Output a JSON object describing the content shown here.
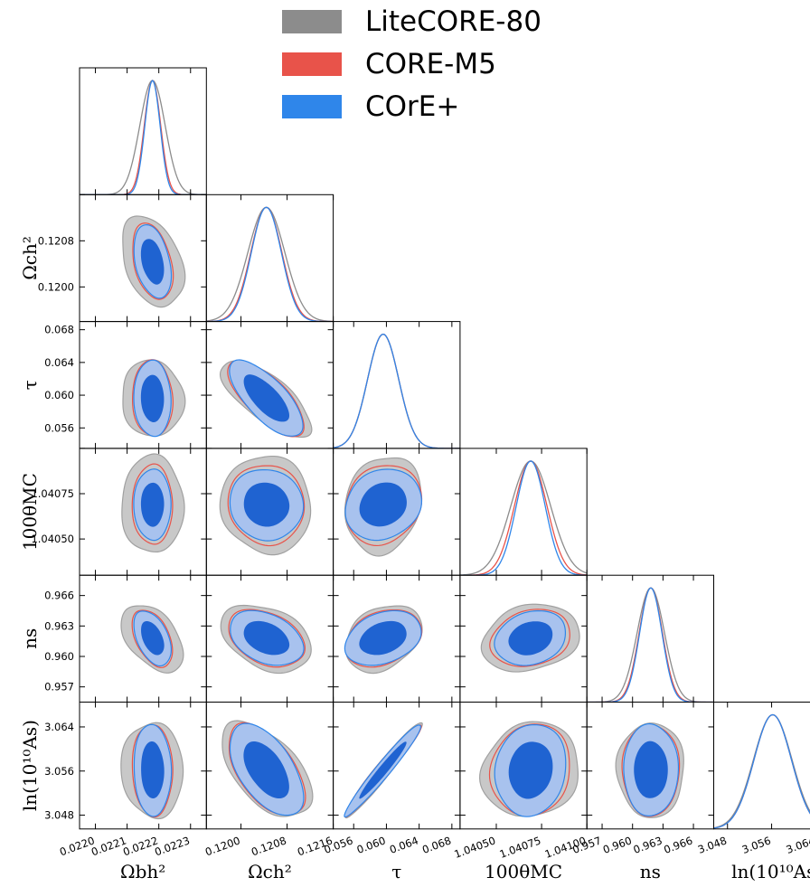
{
  "colors": {
    "litecore": "#8c8c8c",
    "coremn": "#e8534a",
    "core_plus": "#2f86ea",
    "core_plus_inner": "#1f63d1",
    "core_plus_outer": "#a8c2ee",
    "gray_fill": "#c8c8c8"
  },
  "legend": {
    "items": [
      {
        "label": "LiteCORE-80",
        "color": "#8c8c8c"
      },
      {
        "label": "CORE-M5",
        "color": "#e8534a"
      },
      {
        "label": "COrE+",
        "color": "#2f86ea"
      }
    ]
  },
  "chart_data": {
    "type": "triangle-corner",
    "parameters": [
      {
        "label": "Ωbh²",
        "center": 0.02218,
        "sd": [
          4e-05,
          2.6e-05,
          2.4e-05
        ],
        "range": [
          0.02195,
          0.02235
        ],
        "ticks": [
          0.022,
          0.0221,
          0.0222,
          0.0223
        ],
        "tick_labels": [
          "0.0220",
          "0.0221",
          "0.0222",
          "0.0223"
        ]
      },
      {
        "label": "Ωch²",
        "center": 0.12044,
        "sd": [
          0.00032,
          0.00027,
          0.00026
        ],
        "range": [
          0.1194,
          0.1216
        ],
        "ticks": [
          0.12,
          0.1208,
          0.1216
        ],
        "tick_labels": [
          "0.1200",
          "0.1208",
          "0.1216"
        ]
      },
      {
        "label": "τ",
        "center": 0.0596,
        "sd": [
          0.0019,
          0.0019,
          0.0019
        ],
        "range": [
          0.0535,
          0.069
        ],
        "ticks": [
          0.056,
          0.06,
          0.064,
          0.068
        ],
        "tick_labels": [
          "0.056",
          "0.060",
          "0.064",
          "0.068"
        ]
      },
      {
        "label": "100θMC",
        "center": 1.04069,
        "sd": [
          0.00011,
          9e-05,
          8e-05
        ],
        "range": [
          1.0403,
          1.041
        ],
        "ticks": [
          1.0405,
          1.04075,
          1.041
        ],
        "tick_labels": [
          "1.04050",
          "1.04075",
          "1.04100"
        ]
      },
      {
        "label": "ns",
        "center": 0.9618,
        "sd": [
          0.00135,
          0.00115,
          0.0011
        ],
        "range": [
          0.9555,
          0.968
        ],
        "ticks": [
          0.957,
          0.96,
          0.963,
          0.966
        ],
        "tick_labels": [
          "0.957",
          "0.960",
          "0.963",
          "0.966"
        ]
      },
      {
        "label": "ln(10¹⁰As)",
        "center": 3.0562,
        "sd": [
          0.0035,
          0.0034,
          0.0034
        ],
        "range": [
          3.0455,
          3.0685
        ],
        "ticks": [
          3.048,
          3.056,
          3.064
        ],
        "tick_labels": [
          "3.048",
          "3.056",
          "3.064"
        ]
      }
    ],
    "series": [
      {
        "name": "LiteCORE-80"
      },
      {
        "name": "CORE-M5"
      },
      {
        "name": "COrE+"
      }
    ],
    "correlations": {
      "1-0": -0.35,
      "2-0": -0.05,
      "2-1": -0.72,
      "3-0": 0.0,
      "3-1": -0.05,
      "3-2": 0.15,
      "4-0": -0.45,
      "4-1": -0.35,
      "4-2": 0.3,
      "4-3": 0.2,
      "5-0": -0.05,
      "5-1": -0.55,
      "5-2": 0.97,
      "5-3": 0.1,
      "5-4": 0.0
    },
    "contours": "68% and 95% credible regions; 1D marginal posteriors on the diagonal"
  }
}
